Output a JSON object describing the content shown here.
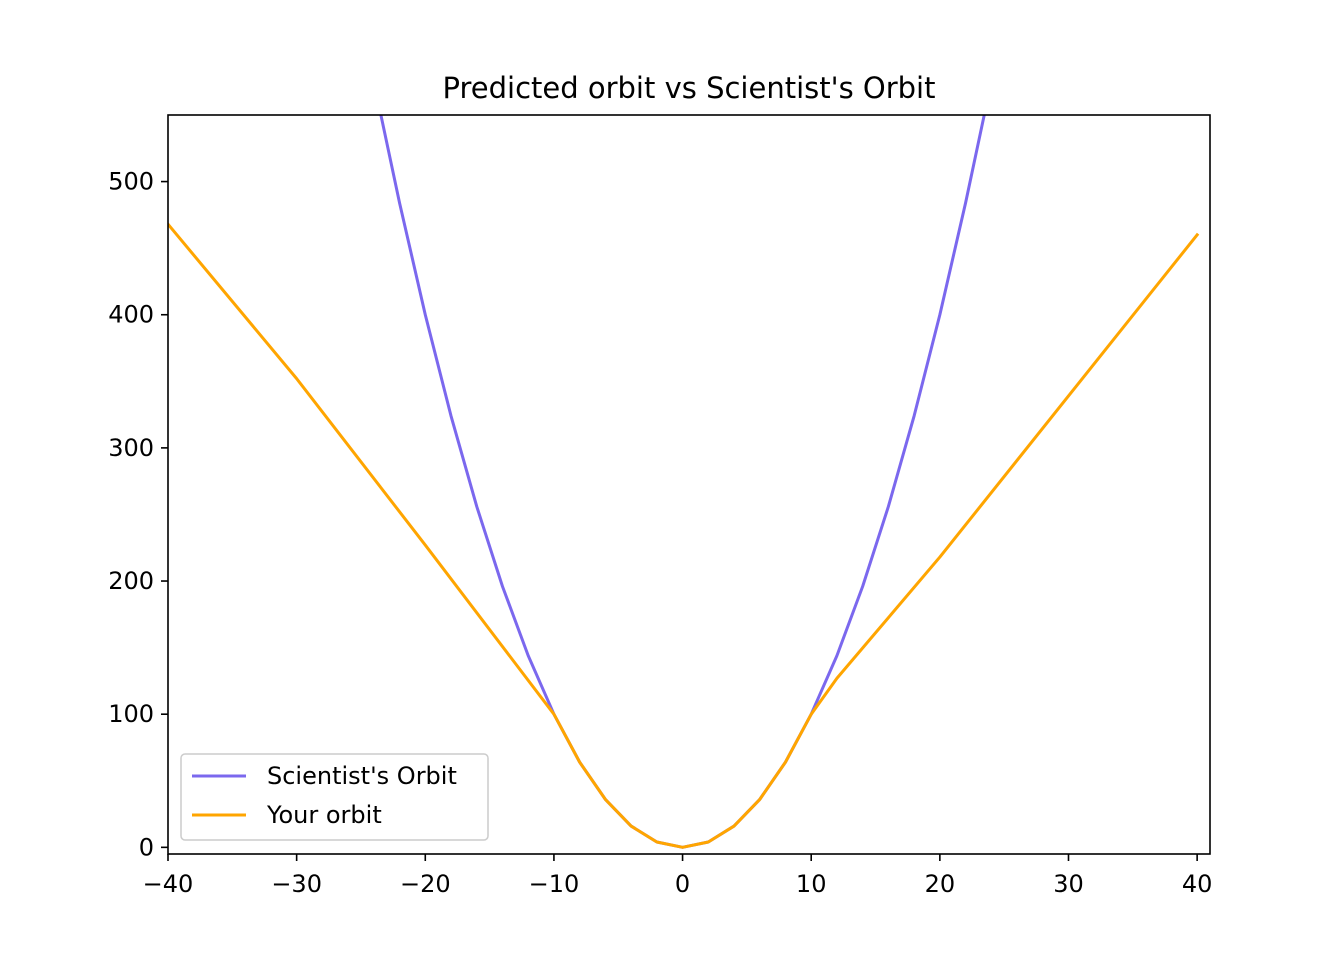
{
  "chart_data": {
    "type": "line",
    "title": "Predicted orbit vs Scientist's Orbit",
    "xlabel": "",
    "ylabel": "",
    "xlim": [
      -40,
      41
    ],
    "ylim": [
      -5,
      550
    ],
    "x_ticks": [
      -40,
      -30,
      -20,
      -10,
      0,
      10,
      20,
      30,
      40
    ],
    "x_tick_labels": [
      "−40",
      "−30",
      "−20",
      "−10",
      "0",
      "10",
      "20",
      "30",
      "40"
    ],
    "y_ticks": [
      0,
      100,
      200,
      300,
      400,
      500
    ],
    "y_tick_labels": [
      "0",
      "100",
      "200",
      "300",
      "400",
      "500"
    ],
    "grid": false,
    "legend_position": "lower-left",
    "series": [
      {
        "name": "Scientist's Orbit",
        "color": "#7b68ee",
        "x": [
          -23.5,
          -22,
          -20,
          -18,
          -16,
          -14,
          -12,
          -10,
          -8,
          -6,
          -4,
          -2,
          0,
          2,
          4,
          6,
          8,
          10,
          12,
          14,
          16,
          18,
          20,
          22,
          23.5
        ],
        "y": [
          552.25,
          484,
          400,
          324,
          256,
          196,
          144,
          100,
          64,
          36,
          16,
          4,
          0,
          4,
          16,
          36,
          64,
          100,
          144,
          196,
          256,
          324,
          400,
          484,
          552.25
        ]
      },
      {
        "name": "Your orbit",
        "color": "#ffa500",
        "x": [
          -40,
          -30,
          -20,
          -10,
          -8,
          -6,
          -4,
          -2,
          0,
          2,
          4,
          6,
          8,
          10,
          12,
          20,
          30,
          40
        ],
        "y": [
          468,
          352,
          227,
          100,
          64,
          36,
          16,
          4,
          0,
          4,
          16,
          36,
          64,
          100,
          127,
          218,
          339,
          460
        ]
      }
    ]
  }
}
